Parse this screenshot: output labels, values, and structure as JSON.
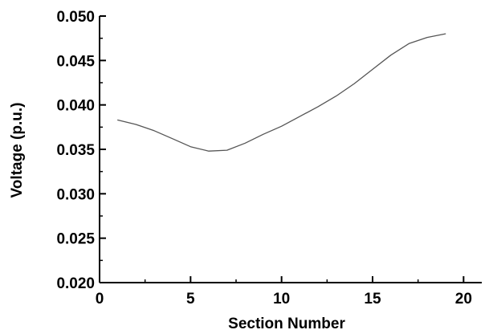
{
  "chart_data": {
    "type": "line",
    "title": "",
    "xlabel": "Section Number",
    "ylabel": "Voltage (p.u.)",
    "xlim": [
      0,
      21
    ],
    "ylim": [
      0.02,
      0.05
    ],
    "x_ticks": [
      0,
      5,
      10,
      15,
      20
    ],
    "x_tick_labels": [
      "0",
      "5",
      "10",
      "15",
      "20"
    ],
    "y_ticks": [
      0.02,
      0.025,
      0.03,
      0.035,
      0.04,
      0.045,
      0.05
    ],
    "y_tick_labels": [
      "0.020",
      "0.025",
      "0.030",
      "0.035",
      "0.040",
      "0.045",
      "0.050"
    ],
    "grid": false,
    "legend": "none",
    "series": [
      {
        "color": "#555555",
        "x": [
          1,
          2,
          3,
          4,
          5,
          6,
          7,
          8,
          9,
          10,
          11,
          12,
          13,
          14,
          15,
          16,
          17,
          18,
          19
        ],
        "y": [
          0.0383,
          0.0378,
          0.0371,
          0.0362,
          0.0353,
          0.0348,
          0.0349,
          0.0357,
          0.0367,
          0.0376,
          0.0387,
          0.0398,
          0.041,
          0.0424,
          0.044,
          0.0456,
          0.0469,
          0.0476,
          0.048
        ]
      }
    ]
  }
}
